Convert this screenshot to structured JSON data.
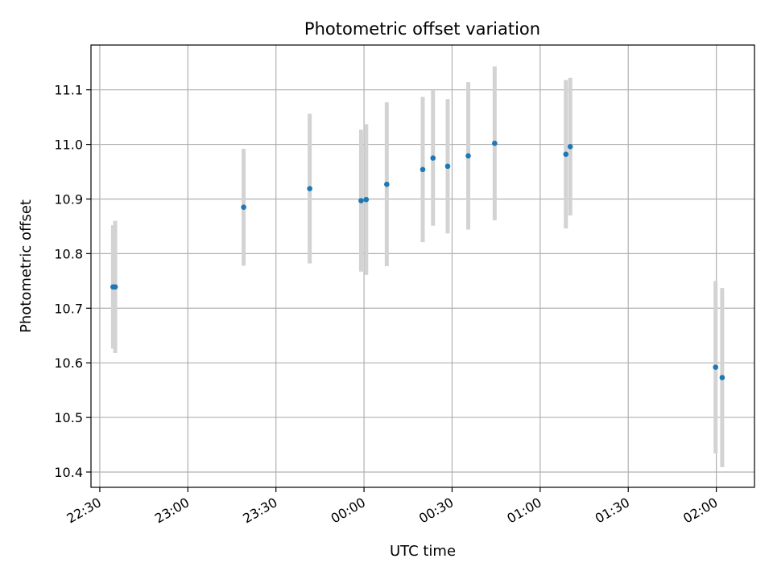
{
  "chart_data": {
    "type": "scatter",
    "title": "Photometric offset variation",
    "xlabel": "UTC time",
    "ylabel": "Photometric offset",
    "xlim": [
      "2019-01-01T22:27",
      "2019-01-02T02:13"
    ],
    "ylim": [
      10.372,
      11.182
    ],
    "grid": true,
    "x_ticks": [
      "22:30",
      "23:00",
      "23:30",
      "00:00",
      "00:30",
      "01:00",
      "01:30",
      "02:00"
    ],
    "y_ticks": [
      10.4,
      10.5,
      10.6,
      10.7,
      10.8,
      10.9,
      11.0,
      11.1
    ],
    "y_tick_labels": [
      "10.4",
      "10.5",
      "10.6",
      "10.7",
      "10.8",
      "10.9",
      "11.0",
      "11.1"
    ],
    "colors": {
      "points": "#1f77b4",
      "errorbars": "#d3d3d3",
      "grid": "#b0b0b0"
    },
    "points": [
      {
        "x": "2019-01-01T22:34:30",
        "y": 10.739,
        "err": 0.113
      },
      {
        "x": "2019-01-01T22:35:15",
        "y": 10.739,
        "err": 0.121
      },
      {
        "x": "2019-01-01T23:19:00",
        "y": 10.885,
        "err": 0.107
      },
      {
        "x": "2019-01-01T23:41:30",
        "y": 10.919,
        "err": 0.137
      },
      {
        "x": "2019-01-01T23:59:00",
        "y": 10.897,
        "err": 0.13
      },
      {
        "x": "2019-01-02T00:00:45",
        "y": 10.899,
        "err": 0.138
      },
      {
        "x": "2019-01-02T00:07:45",
        "y": 10.927,
        "err": 0.15
      },
      {
        "x": "2019-01-02T00:20:00",
        "y": 10.954,
        "err": 0.133
      },
      {
        "x": "2019-01-02T00:23:30",
        "y": 10.975,
        "err": 0.124
      },
      {
        "x": "2019-01-02T00:28:30",
        "y": 10.96,
        "err": 0.123
      },
      {
        "x": "2019-01-02T00:35:30",
        "y": 10.979,
        "err": 0.135
      },
      {
        "x": "2019-01-02T00:44:30",
        "y": 11.002,
        "err": 0.141
      },
      {
        "x": "2019-01-02T01:08:45",
        "y": 10.982,
        "err": 0.136
      },
      {
        "x": "2019-01-02T01:10:15",
        "y": 10.996,
        "err": 0.126
      },
      {
        "x": "2019-01-02T01:59:45",
        "y": 10.592,
        "err": 0.158
      },
      {
        "x": "2019-01-02T02:02:00",
        "y": 10.573,
        "err": 0.164
      }
    ]
  }
}
